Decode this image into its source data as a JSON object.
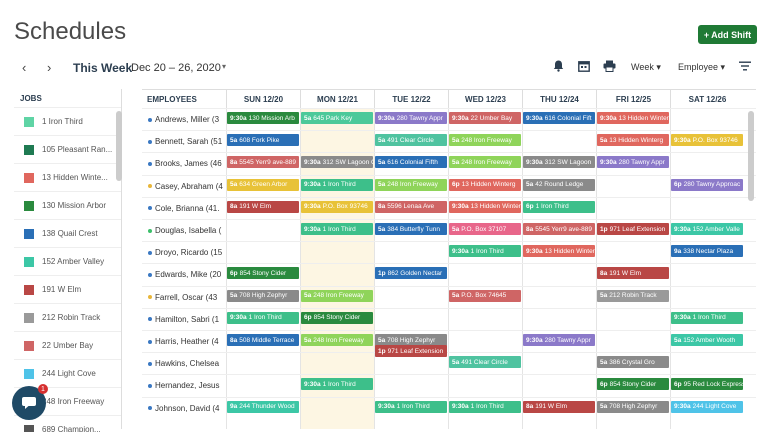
{
  "page_title": "Schedules",
  "add_shift_label": "Add Shift",
  "toolbar": {
    "this_week": "This Week",
    "date_range": "Dec 20 – 26, 2020",
    "week_label": "Week",
    "employee_label": "Employee"
  },
  "jobs": {
    "header": "JOBS",
    "items": [
      {
        "label": "1 Iron Third",
        "color": "#5fd4a5"
      },
      {
        "label": "105 Pleasant Ran...",
        "color": "#1f7a52"
      },
      {
        "label": "13 Hidden Winte...",
        "color": "#e0675e"
      },
      {
        "label": "130 Mission Arbor",
        "color": "#2a8a3e"
      },
      {
        "label": "138 Quail Crest",
        "color": "#2a6fb6"
      },
      {
        "label": "152 Amber Valley",
        "color": "#3cc7a6"
      },
      {
        "label": "191 W Elm",
        "color": "#b94745"
      },
      {
        "label": "212 Robin Track",
        "color": "#9a9a9a"
      },
      {
        "label": "22 Umber Bay",
        "color": "#cf6565"
      },
      {
        "label": "244 Light Cove",
        "color": "#4fc3e8"
      },
      {
        "label": "248 Iron Freeway",
        "color": "#8fd45a"
      },
      {
        "label": "689 Champion...",
        "color": "#555"
      }
    ]
  },
  "chat_badge": "1",
  "grid": {
    "employees_header": "EMPLOYEES",
    "days": [
      "SUN 12/20",
      "MON 12/21",
      "TUE 12/22",
      "WED 12/23",
      "THU 12/24",
      "FRI 12/25",
      "SAT 12/26"
    ],
    "employees": [
      {
        "name": "Andrews, Miller (3",
        "dot": "#3a78c2"
      },
      {
        "name": "Bennett, Sarah (51",
        "dot": "#3a78c2"
      },
      {
        "name": "Brooks, James (46",
        "dot": "#3a78c2"
      },
      {
        "name": "Casey, Abraham (4",
        "dot": "#e8b63a"
      },
      {
        "name": "Cole, Brianna (41.",
        "dot": "#3a78c2"
      },
      {
        "name": "Douglas, Isabella (",
        "dot": "#3cbf6a"
      },
      {
        "name": "Droyo, Ricardo (15",
        "dot": "#3a78c2"
      },
      {
        "name": "Edwards, Mike (20",
        "dot": "#3a78c2"
      },
      {
        "name": "Farrell, Oscar (43",
        "dot": "#e8b63a"
      },
      {
        "name": "Hamilton, Sabri (1",
        "dot": "#3a78c2"
      },
      {
        "name": "Harris, Heather (4",
        "dot": "#3a78c2"
      },
      {
        "name": "Hawkins, Chelsea",
        "dot": "#3a78c2"
      },
      {
        "name": "Hernandez, Jesus",
        "dot": "#3a78c2"
      },
      {
        "name": "Johnson, David (4",
        "dot": "#3a78c2"
      }
    ],
    "shifts": [
      {
        "day": 0,
        "row": 0,
        "sub": 0,
        "time": "9:30a",
        "label": "130 Mission Arb",
        "color": "#2a8a3e"
      },
      {
        "day": 1,
        "row": 0,
        "sub": 0,
        "time": "5a",
        "label": "645 Park Key",
        "color": "#4cc99a"
      },
      {
        "day": 2,
        "row": 0,
        "sub": 0,
        "time": "9:30a",
        "label": "280 Tawny Appr",
        "color": "#8b79c9"
      },
      {
        "day": 3,
        "row": 0,
        "sub": 0,
        "time": "9:30a",
        "label": "22 Umber Bay",
        "color": "#cf6565"
      },
      {
        "day": 4,
        "row": 0,
        "sub": 0,
        "time": "9:30a",
        "label": "616 Colonial Fift",
        "color": "#2a6fb6"
      },
      {
        "day": 5,
        "row": 0,
        "sub": 0,
        "time": "9:30a",
        "label": "13 Hidden Winterg",
        "color": "#e0675e"
      },
      {
        "day": 0,
        "row": 1,
        "sub": 0,
        "time": "5a",
        "label": "608 Fork Pike",
        "color": "#2a6fb6"
      },
      {
        "day": 2,
        "row": 1,
        "sub": 0,
        "time": "5a",
        "label": "491 Clear Circle",
        "color": "#4fc3a0"
      },
      {
        "day": 3,
        "row": 1,
        "sub": 0,
        "time": "5a",
        "label": "248 Iron Freeway",
        "color": "#8fd45a"
      },
      {
        "day": 5,
        "row": 1,
        "sub": 0,
        "time": "5a",
        "label": "13 Hidden Winterg",
        "color": "#e0675e"
      },
      {
        "day": 6,
        "row": 1,
        "sub": 0,
        "time": "9:30a",
        "label": "P.O. Box 93746",
        "color": "#e8c238"
      },
      {
        "day": 0,
        "row": 2,
        "sub": 0,
        "time": "8a",
        "label": "5545 Yerr9 ave-889",
        "color": "#cf6565"
      },
      {
        "day": 1,
        "row": 2,
        "sub": 0,
        "time": "9:30a",
        "label": "312 SW Lagoon Cr",
        "color": "#8a8a8a"
      },
      {
        "day": 2,
        "row": 2,
        "sub": 0,
        "time": "5a",
        "label": "616 Colonial Fifth",
        "color": "#2a6fb6"
      },
      {
        "day": 3,
        "row": 2,
        "sub": 0,
        "time": "5a",
        "label": "248 Iron Freeway",
        "color": "#8fd45a"
      },
      {
        "day": 4,
        "row": 2,
        "sub": 0,
        "time": "9:30a",
        "label": "312 SW Lagoon",
        "color": "#8a8a8a"
      },
      {
        "day": 5,
        "row": 2,
        "sub": 0,
        "time": "9:30a",
        "label": "280 Tawny Appr",
        "color": "#8b79c9"
      },
      {
        "day": 0,
        "row": 3,
        "sub": 0,
        "time": "5a",
        "label": "634 Green Arbor",
        "color": "#e8c238"
      },
      {
        "day": 1,
        "row": 3,
        "sub": 0,
        "time": "9:30a",
        "label": "1 Iron Third",
        "color": "#3dbf8a"
      },
      {
        "day": 2,
        "row": 3,
        "sub": 0,
        "time": "5a",
        "label": "248 Iron Freeway",
        "color": "#8fd45a"
      },
      {
        "day": 3,
        "row": 3,
        "sub": 0,
        "time": "6p",
        "label": "13 Hidden Winterg",
        "color": "#e0675e"
      },
      {
        "day": 4,
        "row": 3,
        "sub": 0,
        "time": "5a",
        "label": "42 Round Ledge",
        "color": "#8a8a8a"
      },
      {
        "day": 6,
        "row": 3,
        "sub": 0,
        "time": "6p",
        "label": "280 Tawny Approac",
        "color": "#8b79c9"
      },
      {
        "day": 0,
        "row": 4,
        "sub": 0,
        "time": "8a",
        "label": "191 W Elm",
        "color": "#b94745"
      },
      {
        "day": 1,
        "row": 4,
        "sub": 0,
        "time": "9:30a",
        "label": "P.O. Box 93746",
        "color": "#e8c238"
      },
      {
        "day": 2,
        "row": 4,
        "sub": 0,
        "time": "8a",
        "label": "5596 Lenaa Ave",
        "color": "#cf6565"
      },
      {
        "day": 3,
        "row": 4,
        "sub": 0,
        "time": "9:30a",
        "label": "13 Hidden Winterg",
        "color": "#e0675e"
      },
      {
        "day": 4,
        "row": 4,
        "sub": 0,
        "time": "6p",
        "label": "1 Iron Third",
        "color": "#3dbf8a"
      },
      {
        "day": 1,
        "row": 5,
        "sub": 0,
        "time": "9:30a",
        "label": "1 Iron Third",
        "color": "#3dbf8a"
      },
      {
        "day": 2,
        "row": 5,
        "sub": 0,
        "time": "5a",
        "label": "384 Butterfly Tunn",
        "color": "#2a6fb6"
      },
      {
        "day": 3,
        "row": 5,
        "sub": 0,
        "time": "5a",
        "label": "P.O. Box 37107",
        "color": "#e8668a"
      },
      {
        "day": 4,
        "row": 5,
        "sub": 0,
        "time": "8a",
        "label": "5545 Yerr9 ave-889",
        "color": "#cf6565"
      },
      {
        "day": 5,
        "row": 5,
        "sub": 0,
        "time": "1p",
        "label": "971 Leaf Extension",
        "color": "#b94745"
      },
      {
        "day": 6,
        "row": 5,
        "sub": 0,
        "time": "9:30a",
        "label": "152 Amber Valle",
        "color": "#3cc7a6"
      },
      {
        "day": 3,
        "row": 6,
        "sub": 0,
        "time": "9:30a",
        "label": "1 Iron Third",
        "color": "#3dbf8a"
      },
      {
        "day": 4,
        "row": 6,
        "sub": 0,
        "time": "9:30a",
        "label": "13 Hidden Winterg",
        "color": "#e0675e"
      },
      {
        "day": 6,
        "row": 6,
        "sub": 0,
        "time": "9a",
        "label": "338 Nectar Plaza",
        "color": "#2a6fb6"
      },
      {
        "day": 0,
        "row": 7,
        "sub": 0,
        "time": "6p",
        "label": "854 Stony Cider",
        "color": "#2a8a3e"
      },
      {
        "day": 2,
        "row": 7,
        "sub": 0,
        "time": "1p",
        "label": "862 Golden Nectar",
        "color": "#2a6fb6"
      },
      {
        "day": 5,
        "row": 7,
        "sub": 0,
        "time": "8a",
        "label": "191 W Elm",
        "color": "#b94745"
      },
      {
        "day": 0,
        "row": 8,
        "sub": 0,
        "time": "5a",
        "label": "708 High Zephyr",
        "color": "#8a8a8a"
      },
      {
        "day": 1,
        "row": 8,
        "sub": 0,
        "time": "5a",
        "label": "248 Iron Freeway",
        "color": "#8fd45a"
      },
      {
        "day": 3,
        "row": 8,
        "sub": 0,
        "time": "5a",
        "label": "P.O. Box 74645",
        "color": "#cf6565"
      },
      {
        "day": 5,
        "row": 8,
        "sub": 0,
        "time": "5a",
        "label": "212 Robin Track",
        "color": "#9a9a9a"
      },
      {
        "day": 0,
        "row": 9,
        "sub": 0,
        "time": "9:30a",
        "label": "1 Iron Third",
        "color": "#3dbf8a"
      },
      {
        "day": 1,
        "row": 9,
        "sub": 0,
        "time": "6p",
        "label": "854 Stony Cider",
        "color": "#2a8a3e"
      },
      {
        "day": 6,
        "row": 9,
        "sub": 0,
        "time": "9:30a",
        "label": "1 Iron Third",
        "color": "#3dbf8a"
      },
      {
        "day": 0,
        "row": 10,
        "sub": 0,
        "time": "8a",
        "label": "508 Middle Terrace",
        "color": "#2a6fb6"
      },
      {
        "day": 1,
        "row": 10,
        "sub": 0,
        "time": "5a",
        "label": "248 Iron Freeway",
        "color": "#8fd45a"
      },
      {
        "day": 2,
        "row": 10,
        "sub": 0,
        "time": "5a",
        "label": "708 High Zephyr",
        "color": "#8a8a8a"
      },
      {
        "day": 2,
        "row": 10,
        "sub": 1,
        "time": "1p",
        "label": "971 Leaf Extension",
        "color": "#b94745"
      },
      {
        "day": 4,
        "row": 10,
        "sub": 0,
        "time": "9:30a",
        "label": "280 Tawny Appr",
        "color": "#8b79c9"
      },
      {
        "day": 6,
        "row": 10,
        "sub": 0,
        "time": "5a",
        "label": "152 Amber Wooth",
        "color": "#3cc7a6"
      },
      {
        "day": 3,
        "row": 11,
        "sub": 0,
        "time": "5a",
        "label": "491 Clear Circle",
        "color": "#4fc3a0"
      },
      {
        "day": 5,
        "row": 11,
        "sub": 0,
        "time": "5a",
        "label": "386 Crystal Gro",
        "color": "#8a8a8a"
      },
      {
        "day": 1,
        "row": 12,
        "sub": 0,
        "time": "9:30a",
        "label": "1 Iron Third",
        "color": "#3dbf8a"
      },
      {
        "day": 5,
        "row": 12,
        "sub": 0,
        "time": "6p",
        "label": "854 Stony Cider",
        "color": "#2a8a3e"
      },
      {
        "day": 6,
        "row": 12,
        "sub": 0,
        "time": "6p",
        "label": "95 Red Lock Express",
        "color": "#2a8a3e"
      },
      {
        "day": 0,
        "row": 13,
        "sub": 0,
        "time": "9a",
        "label": "244 Thunder Wood",
        "color": "#3cc7a6"
      },
      {
        "day": 2,
        "row": 13,
        "sub": 0,
        "time": "9:30a",
        "label": "1 Iron Third",
        "color": "#3dbf8a"
      },
      {
        "day": 3,
        "row": 13,
        "sub": 0,
        "time": "9:30a",
        "label": "1 Iron Third",
        "color": "#3dbf8a"
      },
      {
        "day": 4,
        "row": 13,
        "sub": 0,
        "time": "8a",
        "label": "191 W Elm",
        "color": "#b94745"
      },
      {
        "day": 5,
        "row": 13,
        "sub": 0,
        "time": "5a",
        "label": "708 High Zephyr",
        "color": "#8a8a8a"
      },
      {
        "day": 6,
        "row": 13,
        "sub": 0,
        "time": "9:30a",
        "label": "244 Light Cove",
        "color": "#4fc3e8"
      }
    ]
  }
}
